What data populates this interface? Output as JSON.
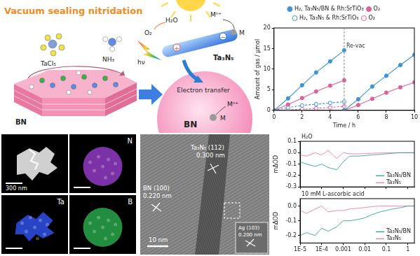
{
  "schematic": {
    "title": "Vacuum sealing nitridation",
    "precursor_1": "TaCl₅",
    "precursor_2": "NH₃",
    "support": "BN",
    "reactant": "H₂O",
    "product": "O₂",
    "ion": "Mⁿ⁺",
    "metal": "M",
    "semiconductor": "Ta₃N₅",
    "light": "hν",
    "hole": "+",
    "electron": "−",
    "process": "Electron transfer",
    "particle": "BN"
  },
  "eds_maps": {
    "scale_bar": "300 nm",
    "maps": [
      {
        "element": "N",
        "color": "#9a3fd0"
      },
      {
        "element": "Ta",
        "color": "#2f4fe6"
      },
      {
        "element": "B",
        "color": "#2bb04f"
      }
    ]
  },
  "hrtem": {
    "fringes": [
      {
        "plane": "Ta₃N₅ (112)",
        "spacing": "0.300 nm"
      },
      {
        "plane": "BN (100)",
        "spacing": "0.220 nm"
      },
      {
        "plane": "Ag (103)",
        "spacing": "0.200 nm"
      }
    ],
    "scale_bar": "10 nm"
  },
  "chart_data": [
    {
      "type": "line",
      "x_label": "Time / h",
      "y_label": "Amount of gas / μmol",
      "xlim": [
        0,
        10
      ],
      "xticks": [
        0,
        2,
        4,
        6,
        8,
        10
      ],
      "ylim": [
        0,
        20
      ],
      "yticks": [
        0,
        5,
        10,
        15,
        20
      ],
      "grid": false,
      "legend": "top",
      "annotations": [
        {
          "text": "Re-vac",
          "x": 5
        }
      ],
      "series": [
        {
          "name": "H₂, Ta₃N₅/BN & Rh:SrTiO₃",
          "color": "#3d95d8",
          "marker": "circle",
          "line_style": "solid",
          "x": [
            0,
            1,
            2,
            3,
            4,
            5,
            5,
            5,
            6,
            7,
            8,
            9,
            10
          ],
          "values": [
            0,
            2.9,
            6.1,
            9.2,
            11.9,
            14.6,
            null,
            0,
            2.7,
            5.8,
            8.4,
            11,
            13.5
          ]
        },
        {
          "name": "O₂",
          "color": "#e0609e",
          "marker": "circle",
          "line_style": "solid",
          "x": [
            0,
            1,
            2,
            3,
            4,
            5,
            5,
            5,
            6,
            7,
            8,
            9,
            10
          ],
          "values": [
            0,
            1.4,
            3,
            4.6,
            6,
            7.3,
            null,
            0,
            1.3,
            2.8,
            4.3,
            5.6,
            6.8
          ]
        },
        {
          "name": "H₂, Ta₃N₅ & Rh:SrTiO₃",
          "color": "#3d95d8",
          "marker": "open circle",
          "line_style": "dashed",
          "x": [
            0,
            1,
            2,
            3,
            4,
            5
          ],
          "values": [
            0,
            0.7,
            1.2,
            1.5,
            1.8,
            2.1
          ]
        },
        {
          "name": "O₂",
          "color": "#e0609e",
          "marker": "open circle",
          "line_style": "dashed",
          "x": [
            0,
            1,
            2,
            3,
            4,
            5
          ],
          "values": [
            0,
            0.1,
            0.3,
            0.5,
            0.7,
            1.0
          ]
        }
      ]
    },
    {
      "type": "line",
      "title": "H₂O",
      "y_label": "mΔOD",
      "log": "x",
      "grid": false,
      "legend": "bottom right",
      "tick_labels": "y",
      "xlim": [
        1e-05,
        2
      ],
      "xticks": [
        {
          "value": 1e-05,
          "label": "1E-5"
        },
        {
          "value": 0.0001,
          "label": "1E-4"
        },
        0.001,
        0.01,
        0.1,
        1
      ],
      "ylim": [
        -0.3,
        0.1
      ],
      "yticks": [
        -0.3,
        -0.2,
        -0.1,
        {
          "value": 0,
          "label": "0.0"
        },
        0.1
      ],
      "x": [
        1e-05,
        2e-05,
        5e-05,
        0.0001,
        0.0002,
        0.0005,
        0.001,
        0.002,
        0.005,
        0.01,
        0.02,
        0.05,
        0.1,
        0.2,
        0.5,
        1,
        2
      ],
      "series": [
        {
          "name": "Ta₃N₅/BN",
          "color": "#1a9a8a",
          "marker": "none",
          "line_style": "solid",
          "values": [
            -0.08,
            -0.1,
            -0.12,
            -0.1,
            -0.13,
            -0.15,
            -0.08,
            -0.03,
            -0.03,
            -0.025,
            -0.02,
            -0.015,
            -0.01,
            -0.005,
            0,
            0,
            0
          ]
        },
        {
          "name": "Ta₃N₅",
          "color": "#f06aa8",
          "marker": "none",
          "line_style": "solid",
          "values": [
            -0.02,
            -0.03,
            0,
            -0.02,
            0.02,
            -0.05,
            0,
            -0.01,
            -0.01,
            -0.008,
            -0.005,
            -0.003,
            0,
            0,
            0,
            0,
            0
          ]
        }
      ]
    },
    {
      "type": "line",
      "title": "10 mM L-ascorbic acid",
      "y_label": "mΔOD",
      "log": "x",
      "grid": false,
      "legend": "bottom right",
      "xlim": [
        1e-05,
        2
      ],
      "xticks": [
        {
          "value": 1e-05,
          "label": "1E-5"
        },
        {
          "value": 0.0001,
          "label": "1E-4"
        },
        0.001,
        0.01,
        0.1,
        1
      ],
      "ylim": [
        -0.25,
        0.05
      ],
      "yticks": [
        -0.2,
        -0.1,
        {
          "value": 0,
          "label": "0.0"
        }
      ],
      "x": [
        1e-05,
        2e-05,
        5e-05,
        0.0001,
        0.0002,
        0.0005,
        0.001,
        0.002,
        0.005,
        0.01,
        0.02,
        0.05,
        0.1,
        0.2,
        0.5,
        1,
        2
      ],
      "series": [
        {
          "name": "Ta₃N₅/BN",
          "color": "#1a9a8a",
          "marker": "none",
          "line_style": "solid",
          "values": [
            -0.2,
            -0.18,
            -0.2,
            -0.15,
            -0.17,
            -0.14,
            -0.1,
            -0.1,
            -0.09,
            -0.08,
            -0.06,
            -0.04,
            -0.03,
            -0.02,
            -0.01,
            0,
            0
          ]
        },
        {
          "name": "Ta₃N₅",
          "color": "#f06aa8",
          "marker": "none",
          "line_style": "solid",
          "values": [
            -0.03,
            -0.05,
            -0.02,
            0,
            -0.04,
            -0.03,
            -0.03,
            -0.02,
            -0.015,
            -0.01,
            -0.005,
            0,
            0,
            0,
            0,
            0,
            0
          ]
        }
      ]
    }
  ]
}
